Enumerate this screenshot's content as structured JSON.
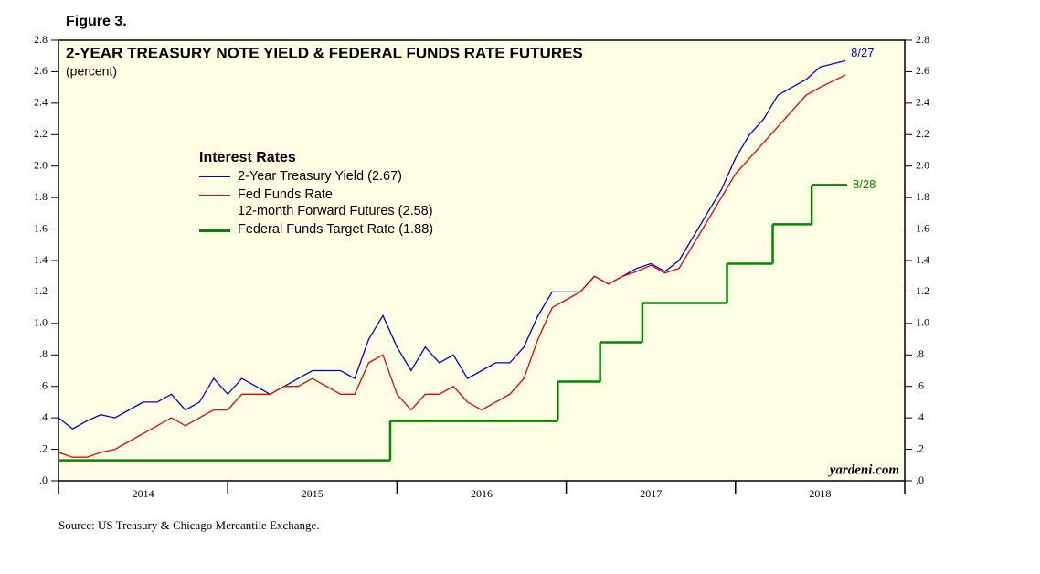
{
  "chart_data": {
    "type": "line",
    "figure_label": "Figure 3.",
    "title": "2-YEAR TREASURY NOTE YIELD & FEDERAL FUNDS RATE FUTURES",
    "subtitle": "(percent)",
    "legend_title": "Interest Rates",
    "watermark": "yardeni.com",
    "source": "Source: US Treasury & Chicago Mercantile Exchange.",
    "xlim": [
      2014,
      2019
    ],
    "xticks": [
      {
        "value": 2014.5,
        "label": "2014"
      },
      {
        "value": 2015.5,
        "label": "2015"
      },
      {
        "value": 2016.5,
        "label": "2016"
      },
      {
        "value": 2017.5,
        "label": "2017"
      },
      {
        "value": 2018.5,
        "label": "2018"
      }
    ],
    "ylim": [
      0,
      2.8
    ],
    "yticks": [
      {
        "value": 0,
        "label": ".0"
      },
      {
        "value": 0.2,
        "label": ".2"
      },
      {
        "value": 0.4,
        "label": ".4"
      },
      {
        "value": 0.6,
        "label": ".6"
      },
      {
        "value": 0.8,
        "label": ".8"
      },
      {
        "value": 1.0,
        "label": "1.0"
      },
      {
        "value": 1.2,
        "label": "1.2"
      },
      {
        "value": 1.4,
        "label": "1.4"
      },
      {
        "value": 1.6,
        "label": "1.6"
      },
      {
        "value": 1.8,
        "label": "1.8"
      },
      {
        "value": 2.0,
        "label": "2.0"
      },
      {
        "value": 2.2,
        "label": "2.2"
      },
      {
        "value": 2.4,
        "label": "2.4"
      },
      {
        "value": 2.6,
        "label": "2.6"
      },
      {
        "value": 2.8,
        "label": "2.8"
      }
    ],
    "series": [
      {
        "name": "2-Year Treasury Yield (2.67)",
        "color": "#0000dd",
        "end_label": "8/27",
        "x": [
          2014,
          2014.083,
          2014.167,
          2014.25,
          2014.333,
          2014.417,
          2014.5,
          2014.583,
          2014.667,
          2014.75,
          2014.833,
          2014.917,
          2015,
          2015.083,
          2015.167,
          2015.25,
          2015.333,
          2015.417,
          2015.5,
          2015.583,
          2015.667,
          2015.75,
          2015.833,
          2015.917,
          2016,
          2016.083,
          2016.167,
          2016.25,
          2016.333,
          2016.417,
          2016.5,
          2016.583,
          2016.667,
          2016.75,
          2016.833,
          2016.917,
          2017,
          2017.083,
          2017.167,
          2017.25,
          2017.333,
          2017.417,
          2017.5,
          2017.583,
          2017.667,
          2017.75,
          2017.833,
          2017.917,
          2018,
          2018.083,
          2018.167,
          2018.25,
          2018.333,
          2018.417,
          2018.5,
          2018.65
        ],
        "values": [
          0.4,
          0.33,
          0.38,
          0.42,
          0.4,
          0.45,
          0.5,
          0.5,
          0.55,
          0.45,
          0.5,
          0.65,
          0.55,
          0.65,
          0.6,
          0.55,
          0.6,
          0.65,
          0.7,
          0.7,
          0.7,
          0.65,
          0.9,
          1.05,
          0.85,
          0.7,
          0.85,
          0.75,
          0.8,
          0.65,
          0.7,
          0.75,
          0.75,
          0.85,
          1.05,
          1.2,
          1.2,
          1.2,
          1.3,
          1.25,
          1.3,
          1.35,
          1.38,
          1.33,
          1.4,
          1.55,
          1.7,
          1.85,
          2.05,
          2.2,
          2.3,
          2.45,
          2.5,
          2.55,
          2.63,
          2.67
        ]
      },
      {
        "name": "Fed Funds Rate\n12-month Forward Futures (2.58)",
        "color": "#ee0000",
        "x": [
          2014,
          2014.083,
          2014.167,
          2014.25,
          2014.333,
          2014.417,
          2014.5,
          2014.583,
          2014.667,
          2014.75,
          2014.833,
          2014.917,
          2015,
          2015.083,
          2015.167,
          2015.25,
          2015.333,
          2015.417,
          2015.5,
          2015.583,
          2015.667,
          2015.75,
          2015.833,
          2015.917,
          2016,
          2016.083,
          2016.167,
          2016.25,
          2016.333,
          2016.417,
          2016.5,
          2016.583,
          2016.667,
          2016.75,
          2016.833,
          2016.917,
          2017,
          2017.083,
          2017.167,
          2017.25,
          2017.333,
          2017.417,
          2017.5,
          2017.583,
          2017.667,
          2017.75,
          2017.833,
          2017.917,
          2018,
          2018.083,
          2018.167,
          2018.25,
          2018.333,
          2018.417,
          2018.5,
          2018.65
        ],
        "values": [
          0.18,
          0.15,
          0.15,
          0.18,
          0.2,
          0.25,
          0.3,
          0.35,
          0.4,
          0.35,
          0.4,
          0.45,
          0.45,
          0.55,
          0.55,
          0.55,
          0.6,
          0.6,
          0.65,
          0.6,
          0.55,
          0.55,
          0.75,
          0.8,
          0.55,
          0.45,
          0.55,
          0.55,
          0.6,
          0.5,
          0.45,
          0.5,
          0.55,
          0.65,
          0.9,
          1.1,
          1.15,
          1.2,
          1.3,
          1.25,
          1.3,
          1.33,
          1.37,
          1.32,
          1.35,
          1.5,
          1.65,
          1.8,
          1.95,
          2.05,
          2.15,
          2.25,
          2.35,
          2.45,
          2.5,
          2.58
        ]
      },
      {
        "name": "Federal Funds Target Rate (1.88)",
        "color": "#008800",
        "end_label": "8/28",
        "step": true,
        "x": [
          2014,
          2015.96,
          2016.95,
          2017.2,
          2017.45,
          2017.95,
          2018.22,
          2018.45,
          2018.66
        ],
        "values": [
          0.13,
          0.38,
          0.63,
          0.88,
          1.13,
          1.38,
          1.63,
          1.88,
          1.88
        ]
      }
    ]
  }
}
